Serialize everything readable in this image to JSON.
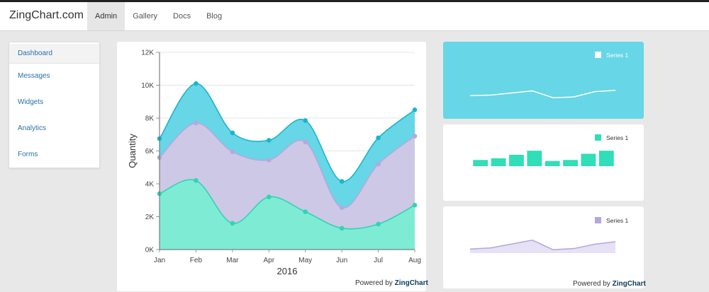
{
  "app": {
    "brand": "ZingChart.com"
  },
  "nav": {
    "items": [
      {
        "label": "Admin",
        "active": true
      },
      {
        "label": "Gallery",
        "active": false
      },
      {
        "label": "Docs",
        "active": false
      },
      {
        "label": "Blog",
        "active": false
      }
    ]
  },
  "sidebar": {
    "items": [
      {
        "label": "Dashboard",
        "active": true
      },
      {
        "label": "Messages",
        "active": false
      },
      {
        "label": "Widgets",
        "active": false
      },
      {
        "label": "Analytics",
        "active": false
      },
      {
        "label": "Forms",
        "active": false
      }
    ]
  },
  "powered": {
    "prefix": "Powered by ",
    "brand": "ZingChart"
  },
  "colors": {
    "series_green": "#7eecd4",
    "series_purple": "#ccc8e6",
    "series_cyan": "#67d6e6",
    "green_line": "#2fd4b4",
    "purple_line": "#b7a8dc",
    "cyan_line": "#1ab5cc",
    "cyan_panel_bg": "#67d6e6",
    "bar_color": "#30deb8",
    "small_area_fill": "#e6e1f4",
    "small_area_line": "#b4a6dc"
  },
  "chart_data": [
    {
      "type": "area",
      "stacked": true,
      "categories": [
        "Jan",
        "Feb",
        "Mar",
        "Apr",
        "May",
        "Jun",
        "Jul",
        "Aug"
      ],
      "series": [
        {
          "values": [
            3400,
            4200,
            1600,
            3200,
            2300,
            1300,
            1550,
            2700
          ]
        },
        {
          "values": [
            2200,
            3500,
            4350,
            2250,
            4250,
            1250,
            3650,
            4200
          ]
        },
        {
          "values": [
            1150,
            2400,
            1150,
            1200,
            1300,
            1600,
            1600,
            1600
          ]
        }
      ],
      "xlabel": "2016",
      "ylabel": "Quantity",
      "ylim": [
        0,
        12000
      ],
      "yticks": [
        "0K",
        "2K",
        "4K",
        "6K",
        "8K",
        "10K",
        "12K"
      ],
      "grid": true,
      "legend": "none"
    },
    {
      "type": "line",
      "series": [
        {
          "name": "Series 1",
          "values": [
            5,
            5.2,
            6,
            6.8,
            4.2,
            4.5,
            6.5,
            7
          ]
        }
      ],
      "ylim": [
        0,
        20
      ],
      "legend": "top-right"
    },
    {
      "type": "bar",
      "series": [
        {
          "name": "Series 1",
          "values": [
            3,
            3.8,
            5.5,
            7.5,
            2.5,
            3,
            6,
            7.5
          ]
        }
      ],
      "ylim": [
        0,
        12
      ],
      "legend": "top-right"
    },
    {
      "type": "area",
      "series": [
        {
          "name": "Series 1",
          "values": [
            2.5,
            3.2,
            5.6,
            8,
            2.1,
            2.8,
            5.5,
            7
          ]
        }
      ],
      "ylim": [
        0,
        20
      ],
      "legend": "top-right"
    }
  ]
}
